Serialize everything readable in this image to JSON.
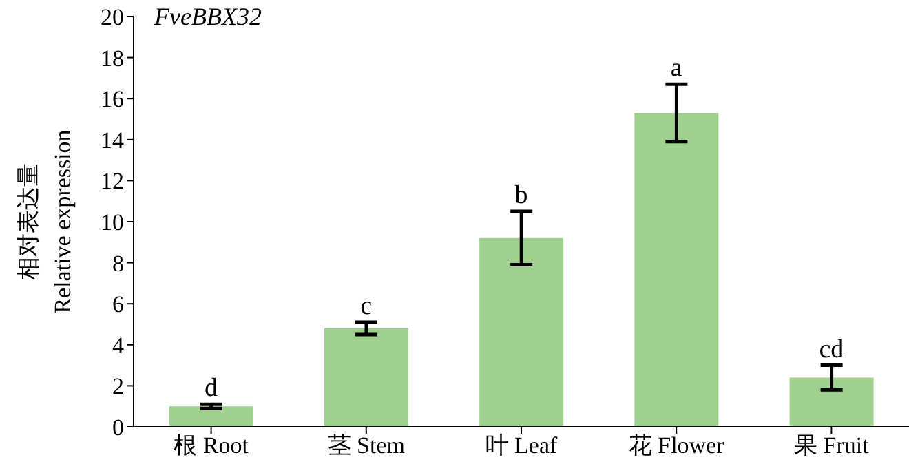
{
  "chart_data": {
    "type": "bar",
    "title": "FveBBX32",
    "ylabel": "相对表达量\nRelative expression",
    "categories": [
      "根 Root",
      "茎 Stem",
      "叶 Leaf",
      "花 Flower",
      "果 Fruit"
    ],
    "values": [
      1.0,
      4.8,
      9.2,
      15.3,
      2.4
    ],
    "errors": [
      0.1,
      0.3,
      1.3,
      1.4,
      0.6
    ],
    "color": "#a0d08e",
    "ylim": [
      0,
      20
    ],
    "yticks": [
      0,
      2,
      4,
      6,
      8,
      10,
      12,
      14,
      16,
      18,
      20
    ],
    "grid": false,
    "legend": false,
    "annotations": [
      "d",
      "c",
      "b",
      "a",
      "cd"
    ]
  }
}
